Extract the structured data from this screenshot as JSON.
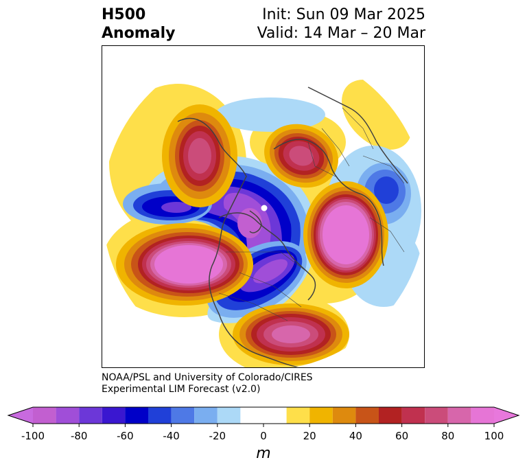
{
  "title": {
    "left_line1": "H500",
    "left_line2": "Anomaly",
    "right_line1": "Init: Sun 09 Mar 2025",
    "right_line2": "Valid: 14 Mar – 20 Mar"
  },
  "credit": {
    "line1": "NOAA/PSL and University of Colorado/CIRES",
    "line2": "Experimental LIM Forecast (v2.0)"
  },
  "colorbar": {
    "units": "m",
    "tick_labels": [
      "-100",
      "-80",
      "-60",
      "-40",
      "-20",
      "0",
      "20",
      "40",
      "60",
      "80",
      "100"
    ],
    "levels": [
      -100,
      -90,
      -80,
      -70,
      -60,
      -50,
      -40,
      -30,
      -20,
      -10,
      10,
      20,
      30,
      40,
      50,
      60,
      70,
      80,
      90,
      100
    ],
    "colors": [
      "#c25fd0",
      "#a04ed8",
      "#6c37d8",
      "#3a17d0",
      "#0000c8",
      "#2040d8",
      "#4e79e6",
      "#7aaef0",
      "#acd9f7",
      "#ffffff",
      "#fedf4a",
      "#f0b400",
      "#de8a0e",
      "#c85418",
      "#b22222",
      "#c0314f",
      "#cb4c7a",
      "#d766ab",
      "#e675d6"
    ],
    "extend_low_color": "#c86adf",
    "extend_high_color": "#e878dc"
  },
  "map": {
    "projection": "north-polar-stereographic",
    "anomaly_centers": [
      {
        "region": "Northeast Pacific / Gulf of Alaska",
        "sign": "positive",
        "peak_m": 100
      },
      {
        "region": "Western Canada (north)",
        "sign": "positive",
        "peak_m": 70
      },
      {
        "region": "Southeastern United States",
        "sign": "positive",
        "peak_m": 80
      },
      {
        "region": "Western Europe / North Sea",
        "sign": "positive",
        "peak_m": 70
      },
      {
        "region": "Western Siberia",
        "sign": "positive",
        "peak_m": 100
      },
      {
        "region": "Arctic / Greenland",
        "sign": "negative",
        "peak_m": -90
      },
      {
        "region": "Central North America / Great Lakes",
        "sign": "negative",
        "peak_m": -90
      },
      {
        "region": "Bering Sea / Chukotka",
        "sign": "negative",
        "peak_m": -80
      },
      {
        "region": "North Pacific south of Japan",
        "sign": "negative",
        "peak_m": -40
      }
    ]
  }
}
